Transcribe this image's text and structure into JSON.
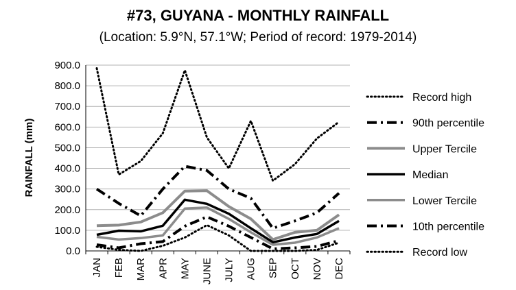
{
  "chart_data": {
    "type": "line",
    "title": "#73, GUYANA - MONTHLY RAINFALL",
    "subtitle": "(Location: 5.9°N, 57.1°W; Period of record: 1979-2014)",
    "ylabel": "RAINFALL (mm)",
    "xlabel": "",
    "ylim": [
      0,
      900
    ],
    "yticks": [
      "0.0",
      "100.0",
      "200.0",
      "300.0",
      "400.0",
      "500.0",
      "600.0",
      "700.0",
      "800.0",
      "900.0"
    ],
    "categories": [
      "JAN",
      "FEB",
      "MAR",
      "APR",
      "MAY",
      "JUNE",
      "JULY",
      "AUG",
      "SEP",
      "OCT",
      "NOV",
      "DEC"
    ],
    "grid": true,
    "legend": "right",
    "series": [
      {
        "name": "Record high",
        "color": "#000000",
        "style": "dotted",
        "width": 3,
        "values": [
          885,
          370,
          435,
          570,
          875,
          550,
          400,
          630,
          340,
          420,
          545,
          625
        ]
      },
      {
        "name": "90th percentile",
        "color": "#000000",
        "style": "dashdot",
        "width": 4,
        "values": [
          300,
          230,
          170,
          300,
          410,
          390,
          300,
          255,
          110,
          145,
          185,
          280
        ]
      },
      {
        "name": "Upper Tercile",
        "color": "#8c8c8c",
        "style": "solid",
        "width": 4,
        "values": [
          122,
          125,
          140,
          185,
          290,
          292,
          215,
          155,
          55,
          90,
          100,
          175
        ]
      },
      {
        "name": "Median",
        "color": "#000000",
        "style": "solid",
        "width": 3.5,
        "values": [
          78,
          98,
          95,
          122,
          248,
          228,
          180,
          110,
          42,
          65,
          82,
          145
        ]
      },
      {
        "name": "Lower Tercile",
        "color": "#8c8c8c",
        "style": "solid",
        "width": 3.5,
        "values": [
          68,
          55,
          62,
          75,
          205,
          210,
          155,
          90,
          30,
          40,
          65,
          110
        ]
      },
      {
        "name": "10th percentile",
        "color": "#000000",
        "style": "dashdot",
        "width": 4,
        "values": [
          30,
          15,
          35,
          45,
          120,
          165,
          120,
          65,
          10,
          15,
          22,
          50
        ]
      },
      {
        "name": "Record low",
        "color": "#000000",
        "style": "dotted",
        "width": 3,
        "values": [
          20,
          5,
          0,
          25,
          65,
          125,
          75,
          0,
          0,
          0,
          5,
          40
        ]
      }
    ]
  }
}
